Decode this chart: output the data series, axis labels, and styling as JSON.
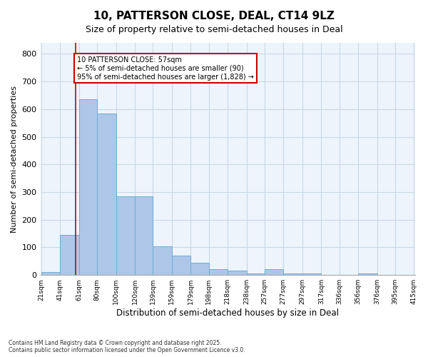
{
  "title_line1": "10, PATTERSON CLOSE, DEAL, CT14 9LZ",
  "title_line2": "Size of property relative to semi-detached houses in Deal",
  "xlabel": "Distribution of semi-detached houses by size in Deal",
  "ylabel": "Number of semi-detached properties",
  "footnote_line1": "Contains HM Land Registry data © Crown copyright and database right 2025.",
  "footnote_line2": "Contains public sector information licensed under the Open Government Licence v3.0.",
  "annotation_line1": "10 PATTERSON CLOSE: 57sqm",
  "annotation_line2": "← 5% of semi-detached houses are smaller (90)",
  "annotation_line3": "95% of semi-detached houses are larger (1,828) →",
  "bar_edges": [
    21,
    41,
    61,
    80,
    100,
    120,
    139,
    159,
    179,
    198,
    218,
    238,
    257,
    277,
    297,
    317,
    336,
    356,
    376,
    395,
    415
  ],
  "bar_heights": [
    10,
    145,
    635,
    585,
    285,
    285,
    105,
    70,
    45,
    20,
    15,
    5,
    20,
    5,
    5,
    0,
    0,
    5,
    0,
    0
  ],
  "bar_color": "#aec6e8",
  "bar_edge_color": "#6baed6",
  "grid_color": "#c8d8e8",
  "bg_color": "#eef4fb",
  "annotation_box_color": "#cc0000",
  "vline_color": "#cc0000",
  "vline_x": 57,
  "ylim": [
    0,
    840
  ],
  "yticks": [
    0,
    100,
    200,
    300,
    400,
    500,
    600,
    700,
    800
  ],
  "tick_labels": [
    "21sqm",
    "41sqm",
    "61sqm",
    "80sqm",
    "100sqm",
    "120sqm",
    "139sqm",
    "159sqm",
    "179sqm",
    "198sqm",
    "218sqm",
    "238sqm",
    "257sqm",
    "277sqm",
    "297sqm",
    "317sqm",
    "336sqm",
    "356sqm",
    "376sqm",
    "395sqm",
    "415sqm"
  ]
}
